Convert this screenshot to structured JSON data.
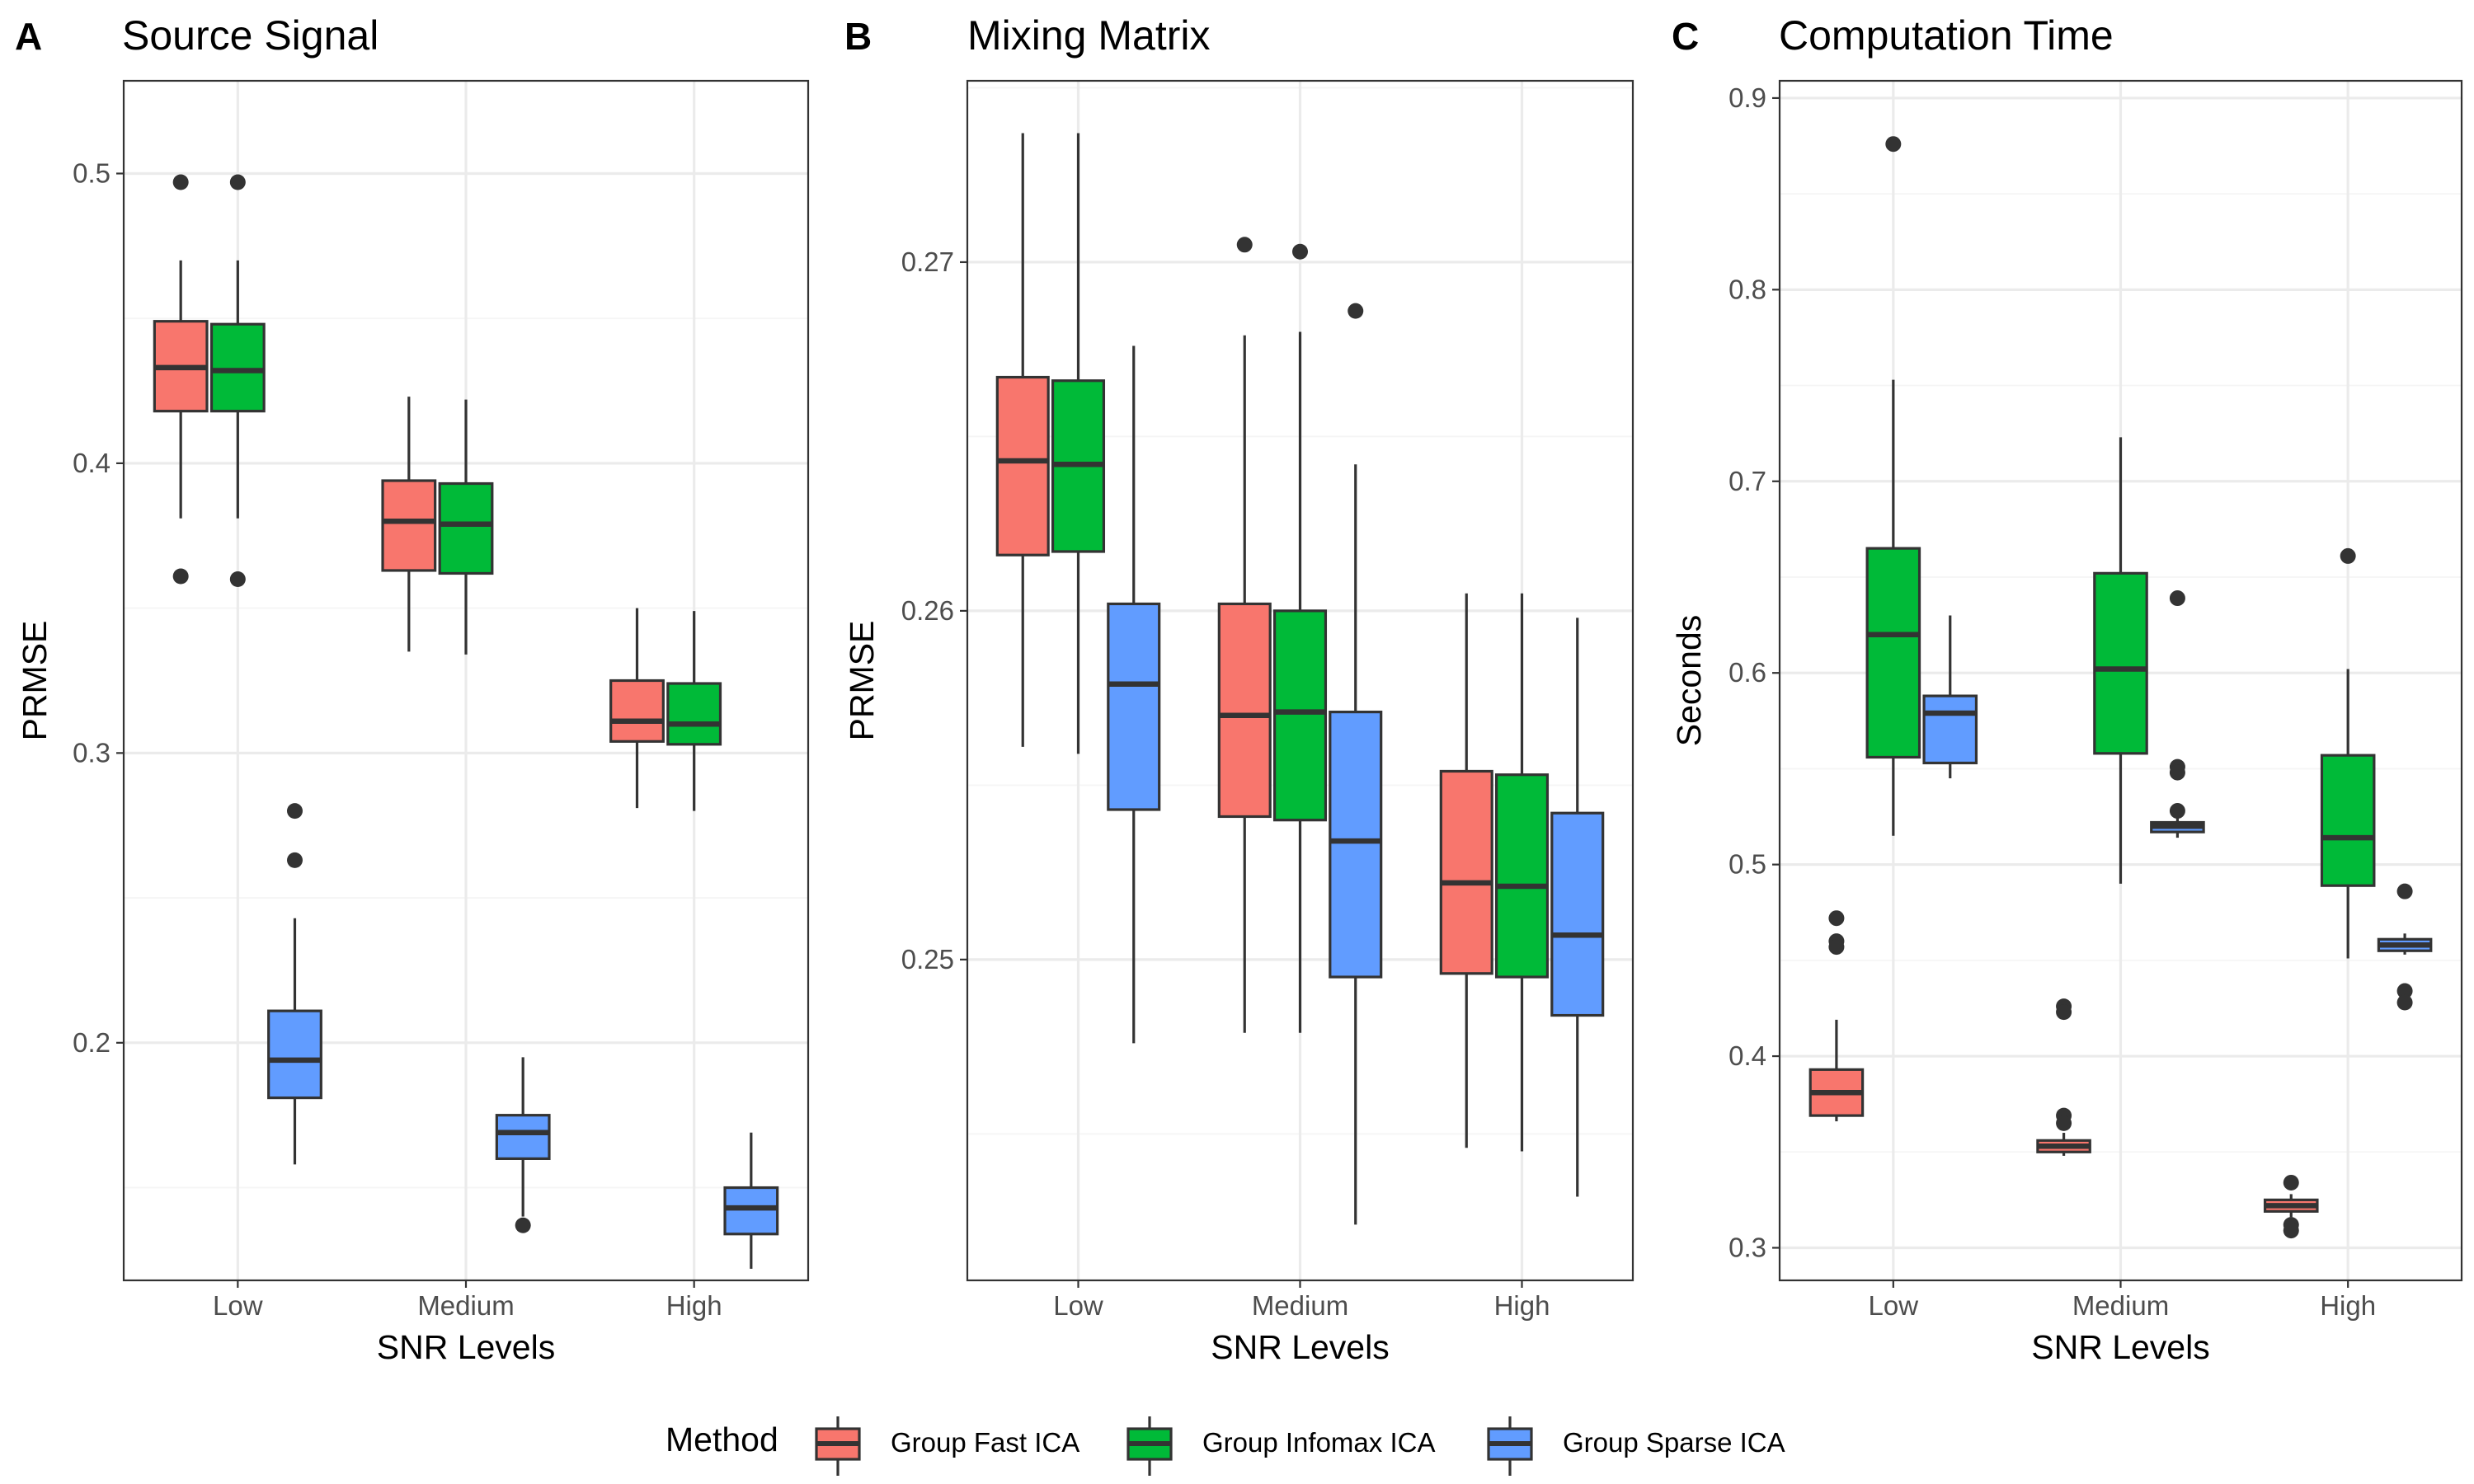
{
  "colors": {
    "Group Fast ICA": "#F8766D",
    "Group Infomax ICA": "#00BA38",
    "Group Sparse ICA": "#619CFF",
    "outline": "#333333",
    "grid_major": "#EBEBEB",
    "grid_minor": "#F5F5F5",
    "panel_border": "#333333"
  },
  "legend": {
    "title": "Method",
    "position": "bottom",
    "entries": [
      "Group Fast ICA",
      "Group Infomax ICA",
      "Group Sparse ICA"
    ]
  },
  "chart_data": [
    {
      "type": "box",
      "tag": "A",
      "title": "Source Signal",
      "xlabel": "SNR Levels",
      "ylabel": "PRMSE",
      "categories": [
        "Low",
        "Medium",
        "High"
      ],
      "ylim": [
        0.118,
        0.532
      ],
      "yticks": [
        0.2,
        0.3,
        0.4,
        0.5
      ],
      "ytick_labels": [
        "0.2",
        "0.3",
        "0.4",
        "0.5"
      ],
      "grid": true,
      "series": [
        {
          "name": "Group Fast ICA",
          "boxes": [
            {
              "category": "Low",
              "whisker_low": 0.381,
              "q1": 0.418,
              "median": 0.433,
              "q3": 0.449,
              "whisker_high": 0.47,
              "outliers": [
                0.497,
                0.361
              ]
            },
            {
              "category": "Medium",
              "whisker_low": 0.335,
              "q1": 0.363,
              "median": 0.38,
              "q3": 0.394,
              "whisker_high": 0.423,
              "outliers": []
            },
            {
              "category": "High",
              "whisker_low": 0.281,
              "q1": 0.304,
              "median": 0.311,
              "q3": 0.325,
              "whisker_high": 0.35,
              "outliers": []
            }
          ]
        },
        {
          "name": "Group Infomax ICA",
          "boxes": [
            {
              "category": "Low",
              "whisker_low": 0.381,
              "q1": 0.418,
              "median": 0.432,
              "q3": 0.448,
              "whisker_high": 0.47,
              "outliers": [
                0.497,
                0.36
              ]
            },
            {
              "category": "Medium",
              "whisker_low": 0.334,
              "q1": 0.362,
              "median": 0.379,
              "q3": 0.393,
              "whisker_high": 0.422,
              "outliers": []
            },
            {
              "category": "High",
              "whisker_low": 0.28,
              "q1": 0.303,
              "median": 0.31,
              "q3": 0.324,
              "whisker_high": 0.349,
              "outliers": []
            }
          ]
        },
        {
          "name": "Group Sparse ICA",
          "boxes": [
            {
              "category": "Low",
              "whisker_low": 0.158,
              "q1": 0.181,
              "median": 0.194,
              "q3": 0.211,
              "whisker_high": 0.243,
              "outliers": [
                0.28,
                0.263
              ]
            },
            {
              "category": "Medium",
              "whisker_low": 0.14,
              "q1": 0.16,
              "median": 0.169,
              "q3": 0.175,
              "whisker_high": 0.195,
              "outliers": [
                0.137
              ]
            },
            {
              "category": "High",
              "whisker_low": 0.122,
              "q1": 0.134,
              "median": 0.143,
              "q3": 0.15,
              "whisker_high": 0.169,
              "outliers": []
            }
          ]
        }
      ]
    },
    {
      "type": "box",
      "tag": "B",
      "title": "Mixing Matrix",
      "xlabel": "SNR Levels",
      "ylabel": "PRMSE",
      "categories": [
        "Low",
        "Medium",
        "High"
      ],
      "ylim": [
        0.2408,
        0.2752
      ],
      "yticks": [
        0.25,
        0.26,
        0.27
      ],
      "ytick_labels": [
        "0.25",
        "0.26",
        "0.27"
      ],
      "grid": true,
      "series": [
        {
          "name": "Group Fast ICA",
          "boxes": [
            {
              "category": "Low",
              "whisker_low": 0.2561,
              "q1": 0.2616,
              "median": 0.2643,
              "q3": 0.2667,
              "whisker_high": 0.2737,
              "outliers": []
            },
            {
              "category": "Medium",
              "whisker_low": 0.2479,
              "q1": 0.2541,
              "median": 0.257,
              "q3": 0.2602,
              "whisker_high": 0.2679,
              "outliers": [
                0.2705
              ]
            },
            {
              "category": "High",
              "whisker_low": 0.2446,
              "q1": 0.2496,
              "median": 0.2522,
              "q3": 0.2554,
              "whisker_high": 0.2605,
              "outliers": []
            }
          ]
        },
        {
          "name": "Group Infomax ICA",
          "boxes": [
            {
              "category": "Low",
              "whisker_low": 0.2559,
              "q1": 0.2617,
              "median": 0.2642,
              "q3": 0.2666,
              "whisker_high": 0.2737,
              "outliers": []
            },
            {
              "category": "Medium",
              "whisker_low": 0.2479,
              "q1": 0.254,
              "median": 0.2571,
              "q3": 0.26,
              "whisker_high": 0.268,
              "outliers": [
                0.2703
              ]
            },
            {
              "category": "High",
              "whisker_low": 0.2445,
              "q1": 0.2495,
              "median": 0.2521,
              "q3": 0.2553,
              "whisker_high": 0.2605,
              "outliers": []
            }
          ]
        },
        {
          "name": "Group Sparse ICA",
          "boxes": [
            {
              "category": "Low",
              "whisker_low": 0.2476,
              "q1": 0.2543,
              "median": 0.2579,
              "q3": 0.2602,
              "whisker_high": 0.2676,
              "outliers": []
            },
            {
              "category": "Medium",
              "whisker_low": 0.2424,
              "q1": 0.2495,
              "median": 0.2534,
              "q3": 0.2571,
              "whisker_high": 0.2642,
              "outliers": [
                0.2686
              ]
            },
            {
              "category": "High",
              "whisker_low": 0.2432,
              "q1": 0.2484,
              "median": 0.2507,
              "q3": 0.2542,
              "whisker_high": 0.2598,
              "outliers": []
            }
          ]
        }
      ]
    },
    {
      "type": "box",
      "tag": "C",
      "title": "Computation Time",
      "xlabel": "SNR Levels",
      "ylabel": "Seconds",
      "categories": [
        "Low",
        "Medium",
        "High"
      ],
      "ylim": [
        0.283,
        0.909
      ],
      "yticks": [
        0.3,
        0.4,
        0.5,
        0.6,
        0.7,
        0.8,
        0.9
      ],
      "ytick_labels": [
        "0.3",
        "0.4",
        "0.5",
        "0.6",
        "0.7",
        "0.8",
        "0.9"
      ],
      "grid": true,
      "series": [
        {
          "name": "Group Fast ICA",
          "boxes": [
            {
              "category": "Low",
              "whisker_low": 0.366,
              "q1": 0.369,
              "median": 0.381,
              "q3": 0.393,
              "whisker_high": 0.419,
              "outliers": [
                0.472,
                0.46,
                0.457
              ]
            },
            {
              "category": "Medium",
              "whisker_low": 0.348,
              "q1": 0.35,
              "median": 0.353,
              "q3": 0.356,
              "whisker_high": 0.36,
              "outliers": [
                0.426,
                0.423,
                0.369,
                0.365
              ]
            },
            {
              "category": "High",
              "whisker_low": 0.316,
              "q1": 0.319,
              "median": 0.322,
              "q3": 0.325,
              "whisker_high": 0.328,
              "outliers": [
                0.334,
                0.312,
                0.309
              ]
            }
          ]
        },
        {
          "name": "Group Infomax ICA",
          "boxes": [
            {
              "category": "Low",
              "whisker_low": 0.515,
              "q1": 0.556,
              "median": 0.62,
              "q3": 0.665,
              "whisker_high": 0.753,
              "outliers": [
                0.876
              ]
            },
            {
              "category": "Medium",
              "whisker_low": 0.49,
              "q1": 0.558,
              "median": 0.602,
              "q3": 0.652,
              "whisker_high": 0.723,
              "outliers": []
            },
            {
              "category": "High",
              "whisker_low": 0.451,
              "q1": 0.489,
              "median": 0.514,
              "q3": 0.557,
              "whisker_high": 0.602,
              "outliers": [
                0.661
              ]
            }
          ]
        },
        {
          "name": "Group Sparse ICA",
          "boxes": [
            {
              "category": "Low",
              "whisker_low": 0.545,
              "q1": 0.553,
              "median": 0.579,
              "q3": 0.588,
              "whisker_high": 0.63,
              "outliers": []
            },
            {
              "category": "Medium",
              "whisker_low": 0.514,
              "q1": 0.517,
              "median": 0.52,
              "q3": 0.522,
              "whisker_high": 0.525,
              "outliers": [
                0.639,
                0.551,
                0.548,
                0.528
              ]
            },
            {
              "category": "High",
              "whisker_low": 0.453,
              "q1": 0.455,
              "median": 0.458,
              "q3": 0.461,
              "whisker_high": 0.464,
              "outliers": [
                0.486,
                0.434,
                0.428
              ]
            }
          ]
        }
      ]
    }
  ]
}
